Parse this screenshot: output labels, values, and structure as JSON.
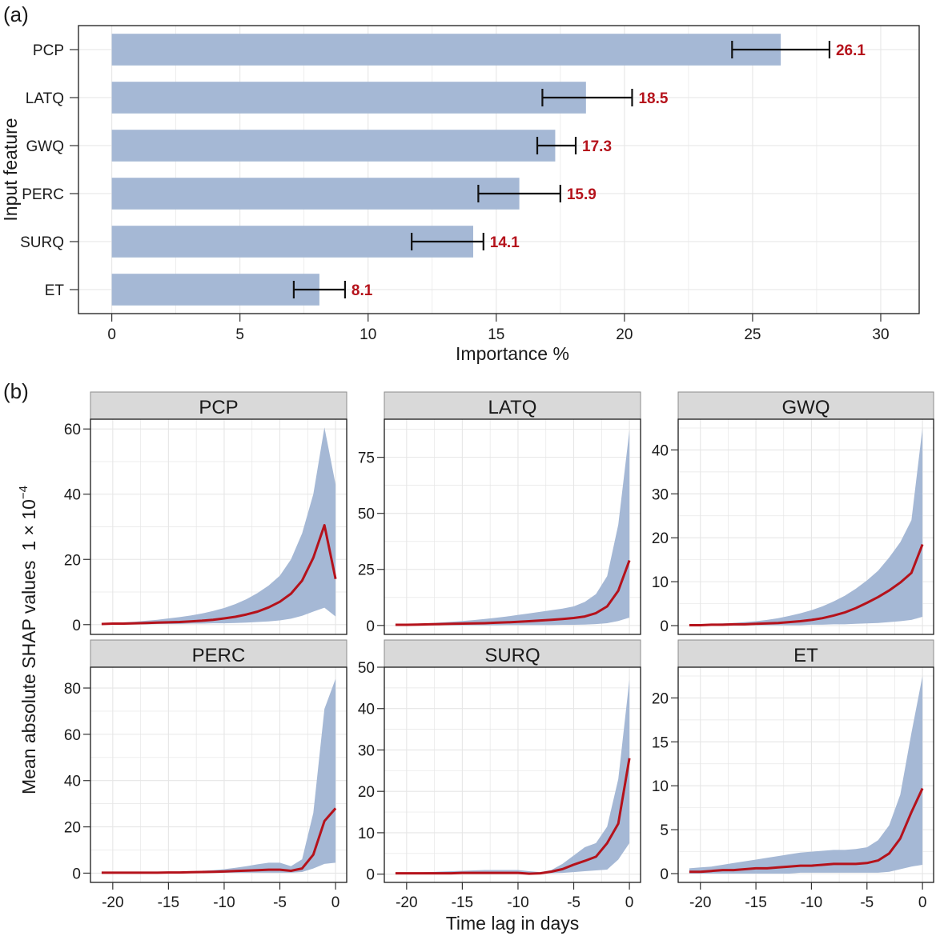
{
  "colors": {
    "bar": "#a5b8d5",
    "band": "#a5b8d5",
    "line": "#b5121b",
    "value_label": "#b5121b",
    "grid": "#e6e6e6",
    "strip_bg": "#d9d9d9",
    "axis": "#1a1a1a"
  },
  "chart_data": [
    {
      "id": "a",
      "panel_tag": "(a)",
      "type": "bar",
      "orientation": "horizontal",
      "xlabel": "Importance %",
      "ylabel": "Input feature",
      "xlim": [
        -1.3,
        31.5
      ],
      "xticks": [
        0,
        5,
        10,
        15,
        20,
        25,
        30
      ],
      "grid": true,
      "categories": [
        "PCP",
        "LATQ",
        "GWQ",
        "PERC",
        "SURQ",
        "ET"
      ],
      "values": [
        26.1,
        18.5,
        17.3,
        15.9,
        14.1,
        8.1
      ],
      "value_labels": [
        "26.1",
        "18.5",
        "17.3",
        "15.9",
        "14.1",
        "8.1"
      ],
      "error_low": [
        24.2,
        16.8,
        16.6,
        14.3,
        11.7,
        7.1
      ],
      "error_high": [
        28.0,
        20.3,
        18.1,
        17.5,
        14.5,
        9.1
      ]
    },
    {
      "id": "b",
      "panel_tag": "(b)",
      "type": "area",
      "xlabel": "Time lag in days",
      "ylabel_main": "Mean absolute SHAP values",
      "ylabel_scale": "1 × 10",
      "ylabel_exponent": "−4",
      "xlim": [
        -22,
        1
      ],
      "xticks": [
        -20,
        -15,
        -10,
        -5,
        0
      ],
      "xtick_labels": [
        "-20",
        "-15",
        "-10",
        "-5",
        "0"
      ],
      "grid": true,
      "x": [
        -21,
        -20,
        -19,
        -18,
        -17,
        -16,
        -15,
        -14,
        -13,
        -12,
        -11,
        -10,
        -9,
        -8,
        -7,
        -6,
        -5,
        -4,
        -3,
        -2,
        -1,
        0
      ],
      "facets": [
        {
          "title": "PCP",
          "ylim": [
            -3,
            63
          ],
          "yticks": [
            0,
            20,
            40,
            60
          ],
          "mean": [
            0.2,
            0.3,
            0.3,
            0.4,
            0.5,
            0.6,
            0.7,
            0.8,
            1.0,
            1.2,
            1.5,
            1.9,
            2.4,
            3.1,
            4.0,
            5.3,
            7.0,
            9.5,
            13.5,
            20.5,
            30.5,
            14.0
          ],
          "upper": [
            0.3,
            0.5,
            0.7,
            0.9,
            1.2,
            1.5,
            1.9,
            2.3,
            2.8,
            3.4,
            4.2,
            5.1,
            6.3,
            7.8,
            9.7,
            12.0,
            15.0,
            20.0,
            28.0,
            40.0,
            60.5,
            43.0
          ],
          "lower": [
            0.1,
            0.1,
            0.1,
            0.1,
            0.1,
            0.2,
            0.2,
            0.2,
            0.3,
            0.3,
            0.4,
            0.4,
            0.5,
            0.6,
            0.8,
            1.0,
            1.3,
            1.8,
            2.7,
            4.0,
            5.2,
            2.5
          ]
        },
        {
          "title": "LATQ",
          "ylim": [
            -4,
            92
          ],
          "yticks": [
            0,
            25,
            50,
            75
          ],
          "mean": [
            0.3,
            0.3,
            0.4,
            0.5,
            0.6,
            0.7,
            0.8,
            0.9,
            1.0,
            1.2,
            1.4,
            1.6,
            1.9,
            2.2,
            2.5,
            2.9,
            3.3,
            4.0,
            5.5,
            8.5,
            15.5,
            29.0
          ],
          "upper": [
            0.4,
            0.6,
            0.8,
            1.0,
            1.3,
            1.6,
            2.0,
            2.4,
            2.9,
            3.4,
            4.0,
            4.7,
            5.4,
            6.1,
            6.8,
            7.5,
            8.5,
            10.5,
            14.0,
            22.0,
            45.0,
            87.0
          ],
          "lower": [
            0.1,
            0.1,
            0.1,
            0.1,
            0.1,
            0.1,
            0.1,
            0.1,
            0.1,
            0.1,
            0.2,
            0.2,
            0.2,
            0.2,
            0.2,
            0.3,
            0.3,
            0.4,
            0.6,
            1.0,
            2.0,
            3.5
          ]
        },
        {
          "title": "GWQ",
          "ylim": [
            -2,
            47
          ],
          "yticks": [
            0,
            10,
            20,
            30,
            40
          ],
          "mean": [
            0.1,
            0.1,
            0.2,
            0.2,
            0.3,
            0.3,
            0.4,
            0.5,
            0.6,
            0.8,
            1.0,
            1.3,
            1.7,
            2.3,
            3.0,
            4.0,
            5.2,
            6.5,
            8.0,
            9.8,
            12.0,
            18.5
          ],
          "upper": [
            0.2,
            0.3,
            0.4,
            0.5,
            0.6,
            0.8,
            1.0,
            1.3,
            1.7,
            2.2,
            2.8,
            3.5,
            4.4,
            5.5,
            6.8,
            8.4,
            10.3,
            12.5,
            15.5,
            19.0,
            24.0,
            45.0
          ],
          "lower": [
            0.0,
            0.0,
            0.0,
            0.0,
            0.0,
            0.1,
            0.1,
            0.1,
            0.1,
            0.1,
            0.1,
            0.2,
            0.2,
            0.3,
            0.3,
            0.4,
            0.5,
            0.6,
            0.8,
            1.0,
            1.3,
            2.0
          ]
        },
        {
          "title": "PERC",
          "ylim": [
            -4,
            89
          ],
          "yticks": [
            0,
            20,
            40,
            60,
            80
          ],
          "mean": [
            0.2,
            0.2,
            0.2,
            0.2,
            0.2,
            0.2,
            0.3,
            0.3,
            0.4,
            0.5,
            0.6,
            0.7,
            0.9,
            1.1,
            1.3,
            1.5,
            1.5,
            1.0,
            2.0,
            8.0,
            22.5,
            28.0
          ],
          "upper": [
            0.3,
            0.3,
            0.3,
            0.3,
            0.4,
            0.4,
            0.5,
            0.6,
            0.8,
            1.0,
            1.3,
            1.7,
            2.3,
            3.0,
            3.8,
            4.5,
            4.5,
            3.0,
            6.0,
            26.0,
            71.0,
            84.0
          ],
          "lower": [
            0.1,
            0.1,
            0.1,
            0.1,
            0.1,
            0.1,
            0.1,
            0.1,
            0.1,
            0.1,
            0.2,
            0.2,
            0.2,
            0.2,
            0.2,
            0.2,
            0.2,
            0.2,
            0.5,
            2.0,
            4.0,
            4.5
          ]
        },
        {
          "title": "SURQ",
          "ylim": [
            -2,
            50
          ],
          "yticks": [
            0,
            10,
            20,
            30,
            40,
            50
          ],
          "mean": [
            0.2,
            0.2,
            0.2,
            0.2,
            0.2,
            0.2,
            0.3,
            0.3,
            0.3,
            0.3,
            0.3,
            0.3,
            0.1,
            0.2,
            0.6,
            1.2,
            2.3,
            3.2,
            4.2,
            7.5,
            12.2,
            28.0
          ],
          "upper": [
            0.3,
            0.4,
            0.4,
            0.5,
            0.6,
            0.7,
            0.8,
            0.9,
            1.0,
            1.0,
            1.0,
            1.0,
            0.7,
            0.5,
            1.0,
            2.5,
            4.5,
            6.5,
            7.5,
            11.5,
            23.0,
            47.0
          ],
          "lower": [
            0.1,
            0.1,
            0.1,
            0.1,
            0.1,
            0.1,
            0.1,
            0.1,
            0.1,
            0.1,
            0.1,
            0.1,
            0.1,
            0.1,
            0.2,
            0.3,
            0.5,
            0.7,
            0.9,
            1.1,
            3.5,
            7.5
          ]
        },
        {
          "title": "ET",
          "ylim": [
            -1,
            23.5
          ],
          "yticks": [
            0,
            5,
            10,
            15,
            20
          ],
          "mean": [
            0.2,
            0.2,
            0.3,
            0.4,
            0.4,
            0.5,
            0.6,
            0.6,
            0.7,
            0.8,
            0.9,
            0.9,
            1.0,
            1.1,
            1.1,
            1.1,
            1.2,
            1.5,
            2.3,
            4.0,
            7.0,
            9.7
          ],
          "upper": [
            0.6,
            0.7,
            0.8,
            1.0,
            1.2,
            1.4,
            1.6,
            1.8,
            2.0,
            2.2,
            2.4,
            2.5,
            2.6,
            2.7,
            2.7,
            2.8,
            3.0,
            3.8,
            5.5,
            9.0,
            16.0,
            22.5
          ],
          "lower": [
            0.0,
            0.0,
            0.0,
            0.0,
            0.0,
            0.0,
            0.0,
            0.0,
            0.0,
            0.0,
            0.1,
            0.1,
            0.1,
            0.1,
            0.1,
            0.1,
            0.1,
            0.1,
            0.2,
            0.5,
            0.8,
            1.0
          ]
        }
      ]
    }
  ]
}
